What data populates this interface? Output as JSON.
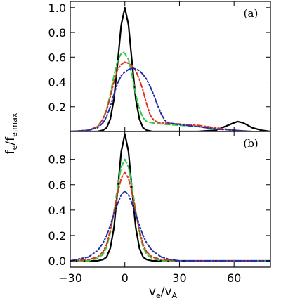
{
  "chart_data": {
    "type": "line",
    "xlabel": {
      "main": "v",
      "sub": "e",
      "sep": "/",
      "main2": "v",
      "sub2": "A"
    },
    "ylabel": {
      "main": "f",
      "sub": "e",
      "sep": "/",
      "main2": "f",
      "sub2": "e,max"
    },
    "xlim": [
      -30,
      80
    ],
    "x_ticks": [
      -30,
      0,
      30,
      60
    ],
    "x_tick_labels": [
      "−30",
      "0",
      "30",
      "60"
    ],
    "grid": false,
    "series_styles": [
      {
        "color": "#000000",
        "dash": ""
      },
      {
        "color": "#2ecc40",
        "dash": "7,4"
      },
      {
        "color": "#e0301e",
        "dash": "7,3,2,3"
      },
      {
        "color": "#1f2fa8",
        "dash": "9,3,2,3,2,3"
      }
    ],
    "panels": [
      {
        "label": "(a)",
        "ylim": [
          0,
          1.05
        ],
        "y_ticks": [
          0.2,
          0.4,
          0.6,
          0.8,
          1.0
        ],
        "y_tick_labels": [
          "0.2",
          "0.4",
          "0.6",
          "0.8",
          "1.0"
        ],
        "series": [
          {
            "x": [
              -30,
              -20,
              -15,
              -12,
              -10,
              -8,
              -6,
              -4,
              -2,
              0,
              2,
              4,
              6,
              8,
              10,
              12,
              15,
              20,
              30,
              40,
              50,
              55,
              60,
              62,
              65,
              70,
              75,
              80
            ],
            "y": [
              0,
              0,
              0,
              0.01,
              0.03,
              0.1,
              0.26,
              0.55,
              0.86,
              1.0,
              0.86,
              0.55,
              0.26,
              0.1,
              0.03,
              0.01,
              0,
              0,
              0,
              0,
              0.01,
              0.04,
              0.07,
              0.08,
              0.07,
              0.03,
              0.01,
              0
            ]
          },
          {
            "x": [
              -30,
              -20,
              -15,
              -12,
              -10,
              -8,
              -6,
              -4,
              -2,
              -1,
              0,
              2,
              4,
              6,
              8,
              10,
              12,
              15,
              20,
              30,
              40,
              50,
              60,
              70,
              80
            ],
            "y": [
              0,
              0.01,
              0.04,
              0.1,
              0.18,
              0.3,
              0.45,
              0.57,
              0.63,
              0.64,
              0.63,
              0.58,
              0.45,
              0.3,
              0.18,
              0.11,
              0.08,
              0.07,
              0.06,
              0.05,
              0.04,
              0.02,
              0.01,
              0,
              0
            ]
          },
          {
            "x": [
              -30,
              -20,
              -15,
              -12,
              -10,
              -8,
              -6,
              -4,
              -2,
              0,
              2,
              4,
              6,
              8,
              10,
              12,
              14,
              16,
              18,
              20,
              25,
              30,
              40,
              50,
              55,
              60,
              70,
              80
            ],
            "y": [
              0,
              0.01,
              0.04,
              0.1,
              0.17,
              0.28,
              0.4,
              0.5,
              0.54,
              0.56,
              0.55,
              0.53,
              0.49,
              0.42,
              0.33,
              0.22,
              0.13,
              0.09,
              0.075,
              0.07,
              0.065,
              0.06,
              0.05,
              0.03,
              0.02,
              0.01,
              0,
              0
            ]
          },
          {
            "x": [
              -30,
              -20,
              -15,
              -12,
              -10,
              -8,
              -6,
              -4,
              -2,
              0,
              2,
              4,
              6,
              8,
              10,
              12,
              14,
              16,
              18,
              20,
              22,
              24,
              26,
              28,
              30,
              40,
              50,
              60,
              70,
              80
            ],
            "y": [
              0,
              0.01,
              0.03,
              0.07,
              0.12,
              0.2,
              0.3,
              0.39,
              0.45,
              0.48,
              0.5,
              0.51,
              0.505,
              0.49,
              0.46,
              0.42,
              0.36,
              0.29,
              0.21,
              0.14,
              0.09,
              0.07,
              0.065,
              0.06,
              0.055,
              0.04,
              0.02,
              0.01,
              0,
              0
            ]
          }
        ]
      },
      {
        "label": "(b)",
        "ylim": [
          -0.05,
          1.02
        ],
        "y_ticks": [
          0.0,
          0.2,
          0.4,
          0.6,
          0.8
        ],
        "y_tick_labels": [
          "0.0",
          "0.2",
          "0.4",
          "0.6",
          "0.8"
        ],
        "series": [
          {
            "x": [
              -30,
              -20,
              -15,
              -12,
              -10,
              -8,
              -6,
              -4,
              -2,
              0,
              2,
              4,
              6,
              8,
              10,
              12,
              15,
              20,
              30,
              40,
              50,
              60,
              70,
              80
            ],
            "y": [
              0,
              0,
              0,
              0.01,
              0.03,
              0.1,
              0.26,
              0.55,
              0.86,
              1.0,
              0.86,
              0.55,
              0.26,
              0.1,
              0.03,
              0.01,
              0,
              0,
              0,
              0,
              0,
              0,
              0,
              0
            ]
          },
          {
            "x": [
              -30,
              -20,
              -15,
              -12,
              -10,
              -8,
              -6,
              -4,
              -2,
              0,
              2,
              4,
              6,
              8,
              10,
              12,
              15,
              20,
              30,
              40,
              50,
              60,
              70,
              80
            ],
            "y": [
              0,
              0,
              0.02,
              0.05,
              0.11,
              0.22,
              0.39,
              0.58,
              0.74,
              0.8,
              0.74,
              0.58,
              0.39,
              0.22,
              0.11,
              0.05,
              0.02,
              0,
              0,
              0,
              0,
              0,
              0,
              0
            ]
          },
          {
            "x": [
              -30,
              -20,
              -15,
              -12,
              -10,
              -8,
              -6,
              -4,
              -2,
              0,
              2,
              4,
              6,
              8,
              10,
              12,
              15,
              20,
              30,
              40,
              50,
              60,
              70,
              80
            ],
            "y": [
              0,
              0.01,
              0.03,
              0.07,
              0.13,
              0.24,
              0.38,
              0.53,
              0.65,
              0.7,
              0.65,
              0.53,
              0.38,
              0.24,
              0.13,
              0.07,
              0.03,
              0.01,
              0,
              0,
              0,
              0,
              0,
              0
            ]
          },
          {
            "x": [
              -30,
              -20,
              -15,
              -12,
              -10,
              -8,
              -6,
              -4,
              -2,
              0,
              2,
              4,
              6,
              8,
              10,
              12,
              15,
              20,
              25,
              30,
              40,
              50,
              60,
              70,
              80
            ],
            "y": [
              0,
              0.03,
              0.08,
              0.14,
              0.2,
              0.28,
              0.37,
              0.45,
              0.52,
              0.55,
              0.52,
              0.45,
              0.37,
              0.28,
              0.2,
              0.14,
              0.08,
              0.03,
              0.01,
              0,
              0,
              0,
              0,
              0,
              0
            ]
          }
        ]
      }
    ]
  }
}
